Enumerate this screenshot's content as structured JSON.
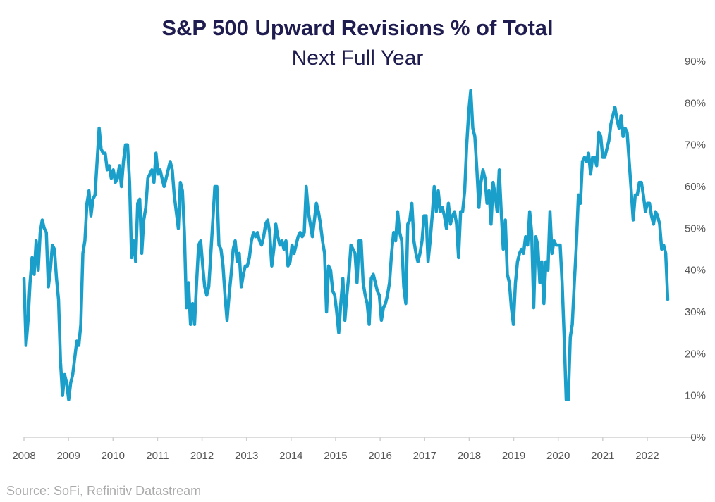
{
  "chart_data": {
    "type": "line",
    "title": "S&P 500 Upward Revisions % of Total",
    "subtitle": "Next Full Year",
    "source": "Source: SoFi, Refinitiv Datastream",
    "xlabel": "",
    "ylabel": "",
    "xlim": [
      2008,
      2022.8
    ],
    "ylim": [
      0,
      90
    ],
    "x_ticks": [
      "2008",
      "2009",
      "2010",
      "2011",
      "2012",
      "2013",
      "2014",
      "2015",
      "2016",
      "2017",
      "2018",
      "2019",
      "2020",
      "2021",
      "2022"
    ],
    "y_ticks": [
      "0%",
      "10%",
      "20%",
      "30%",
      "40%",
      "50%",
      "60%",
      "70%",
      "80%",
      "90%"
    ],
    "y_axis_side": "right",
    "grid": false,
    "line_color": "#1a9fca",
    "series": [
      {
        "name": "Upward Revisions % of Total",
        "x_start": 2008.0,
        "x_end": 2022.46,
        "values": [
          38,
          22,
          28,
          37,
          43,
          39,
          47,
          40,
          49,
          52,
          50,
          49,
          36,
          40,
          46,
          45,
          38,
          33,
          18,
          10,
          15,
          13,
          9,
          13,
          15,
          19,
          23,
          22,
          27,
          44,
          47,
          56,
          59,
          53,
          57,
          58,
          66,
          74,
          69,
          68,
          68,
          64,
          65,
          62,
          64,
          61,
          62,
          65,
          60,
          66,
          70,
          70,
          61,
          43,
          47,
          42,
          56,
          57,
          44,
          52,
          55,
          62,
          63,
          64,
          61,
          68,
          63,
          64,
          62,
          60,
          62,
          64,
          66,
          64,
          58,
          54,
          50,
          61,
          59,
          49,
          31,
          37,
          27,
          32,
          27,
          37,
          46,
          47,
          41,
          36,
          34,
          36,
          44,
          52,
          60,
          60,
          46,
          45,
          41,
          34,
          28,
          34,
          39,
          45,
          47,
          42,
          44,
          36,
          39,
          41,
          41,
          43,
          47,
          49,
          48,
          49,
          47,
          46,
          48,
          51,
          52,
          49,
          41,
          45,
          51,
          48,
          46,
          47,
          45,
          47,
          41,
          42,
          46,
          44,
          46,
          48,
          49,
          48,
          49,
          60,
          54,
          51,
          48,
          52,
          56,
          54,
          51,
          47,
          44,
          30,
          41,
          40,
          35,
          34,
          30,
          25,
          32,
          38,
          28,
          34,
          39,
          46,
          45,
          44,
          37,
          47,
          47,
          37,
          34,
          32,
          27,
          38,
          39,
          37,
          35,
          34,
          28,
          31,
          32,
          34,
          37,
          44,
          49,
          47,
          54,
          49,
          47,
          36,
          32,
          51,
          52,
          56,
          47,
          44,
          42,
          44,
          47,
          53,
          53,
          42,
          47,
          53,
          60,
          54,
          59,
          54,
          55,
          53,
          50,
          56,
          51,
          53,
          54,
          51,
          43,
          54,
          54,
          59,
          70,
          78,
          83,
          74,
          72,
          64,
          55,
          61,
          64,
          62,
          56,
          59,
          51,
          61,
          58,
          54,
          64,
          54,
          45,
          52,
          39,
          37,
          31,
          27,
          37,
          42,
          44,
          45,
          44,
          48,
          46,
          54,
          49,
          31,
          48,
          46,
          37,
          42,
          32,
          42,
          40,
          54,
          44,
          47,
          46,
          46,
          46,
          37,
          24,
          9,
          9,
          24,
          27,
          37,
          46,
          58,
          56,
          66,
          67,
          66,
          68,
          63,
          67,
          67,
          65,
          73,
          72,
          67,
          67,
          69,
          71,
          75,
          77,
          79,
          76,
          74,
          77,
          72,
          74,
          73,
          66,
          59,
          52,
          58,
          58,
          61,
          61,
          58,
          54,
          56,
          56,
          53,
          51,
          54,
          53,
          51,
          45,
          46,
          44,
          33
        ]
      }
    ]
  }
}
